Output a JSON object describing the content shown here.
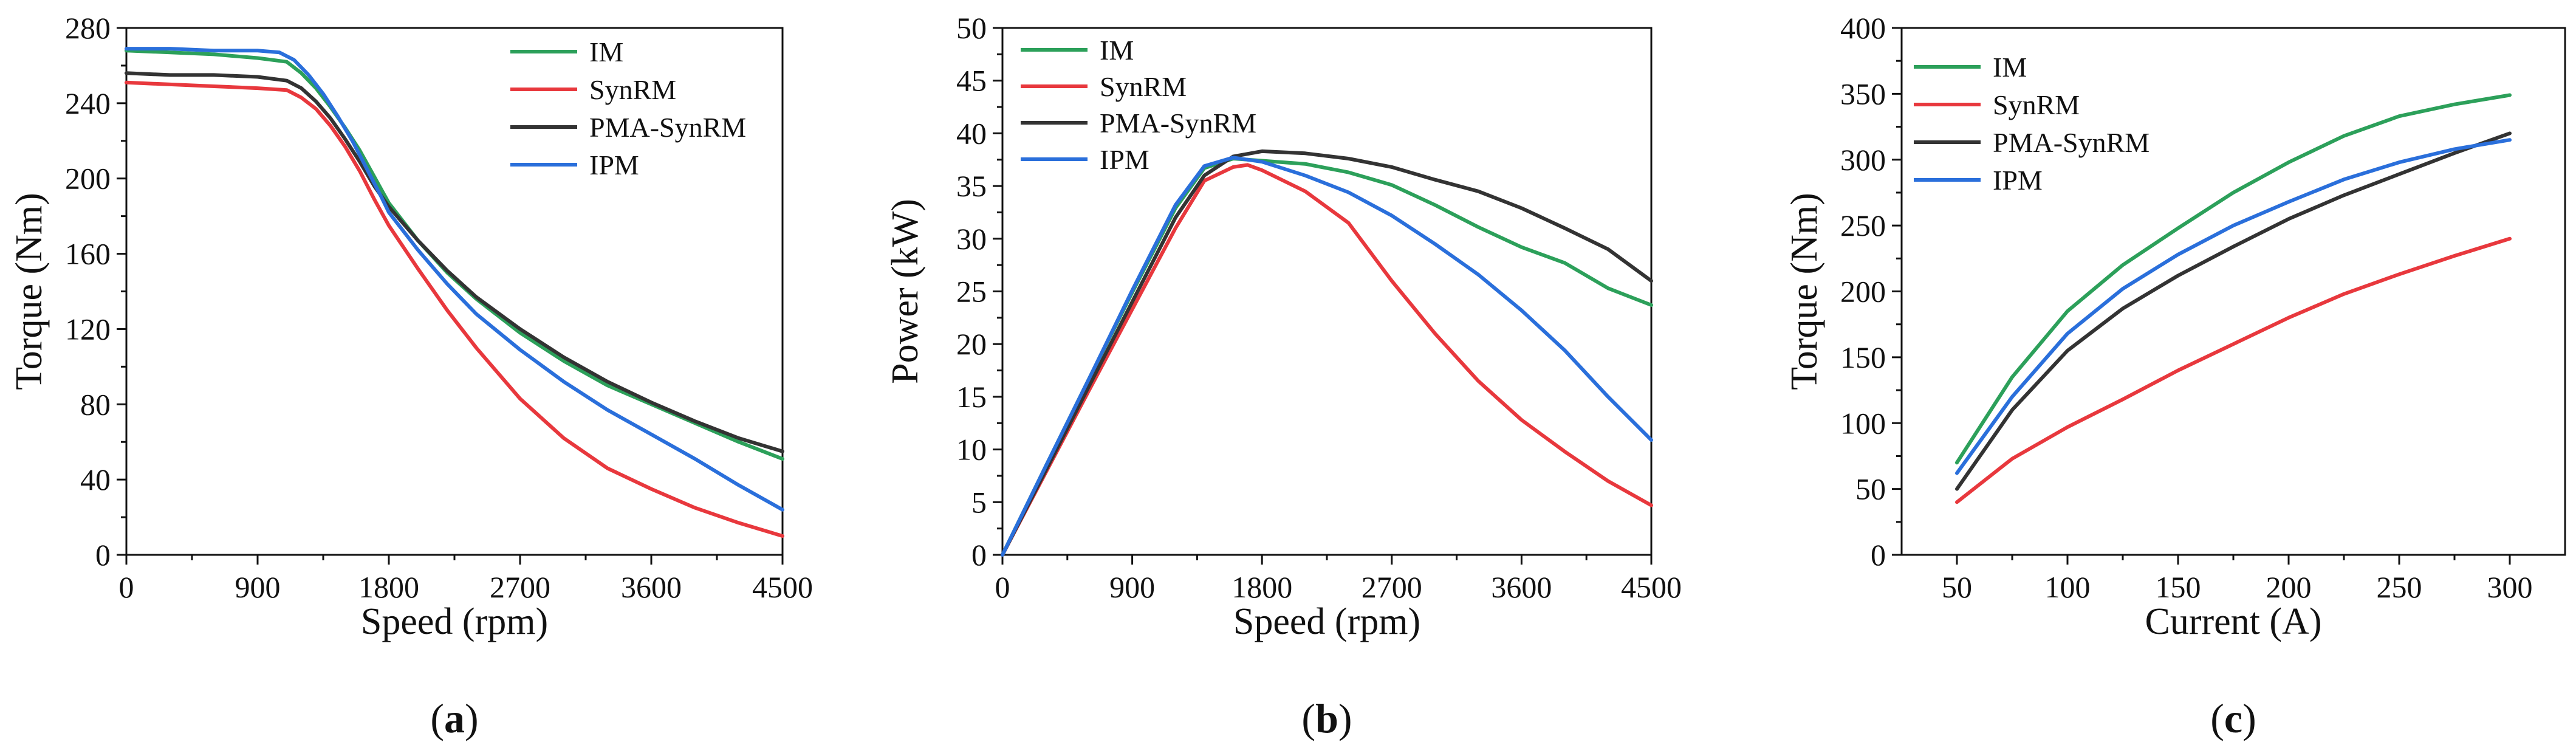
{
  "chart_data": [
    {
      "type": "line",
      "panel_label": "a",
      "xlabel": "Speed (rpm)",
      "ylabel": "Torque (Nm)",
      "xlim": [
        0,
        4500
      ],
      "ylim": [
        0,
        280
      ],
      "xticks": [
        0,
        900,
        1800,
        2700,
        3600,
        4500
      ],
      "yticks": [
        0,
        40,
        80,
        120,
        160,
        200,
        240,
        280
      ],
      "legend_position": "top-right",
      "series": [
        {
          "name": "IM",
          "color": "#2ca05a",
          "x": [
            0,
            300,
            600,
            900,
            1100,
            1200,
            1300,
            1400,
            1500,
            1600,
            1700,
            1800,
            2000,
            2200,
            2400,
            2700,
            3000,
            3300,
            3600,
            3900,
            4200,
            4500
          ],
          "y": [
            268,
            267,
            266,
            264,
            262,
            256,
            248,
            238,
            227,
            215,
            201,
            187,
            167,
            150,
            136,
            118,
            103,
            90,
            80,
            70,
            60,
            51
          ]
        },
        {
          "name": "SynRM",
          "color": "#e8383d",
          "x": [
            0,
            300,
            600,
            900,
            1100,
            1200,
            1300,
            1400,
            1500,
            1600,
            1700,
            1800,
            2000,
            2200,
            2400,
            2700,
            3000,
            3300,
            3600,
            3900,
            4200,
            4500
          ],
          "y": [
            251,
            250,
            249,
            248,
            247,
            243,
            237,
            228,
            217,
            204,
            189,
            175,
            152,
            130,
            110,
            83,
            62,
            46,
            35,
            25,
            17,
            10
          ]
        },
        {
          "name": "PMA-SynRM",
          "color": "#333333",
          "x": [
            0,
            300,
            600,
            900,
            1100,
            1200,
            1300,
            1400,
            1500,
            1600,
            1700,
            1800,
            2000,
            2200,
            2400,
            2700,
            3000,
            3300,
            3600,
            3900,
            4200,
            4500
          ],
          "y": [
            256,
            255,
            255,
            254,
            252,
            248,
            241,
            232,
            221,
            209,
            196,
            185,
            167,
            151,
            137,
            120,
            105,
            92,
            81,
            71,
            62,
            55
          ]
        },
        {
          "name": "IPM",
          "color": "#2a6fdb",
          "x": [
            0,
            300,
            600,
            900,
            1050,
            1150,
            1250,
            1350,
            1450,
            1550,
            1650,
            1750,
            1800,
            2000,
            2200,
            2400,
            2700,
            3000,
            3300,
            3600,
            3900,
            4200,
            4500
          ],
          "y": [
            269,
            269,
            268,
            268,
            267,
            263,
            255,
            245,
            233,
            220,
            205,
            190,
            182,
            162,
            144,
            128,
            109,
            92,
            77,
            64,
            51,
            37,
            24
          ]
        }
      ]
    },
    {
      "type": "line",
      "panel_label": "b",
      "xlabel": "Speed (rpm)",
      "ylabel": "Power (kW)",
      "xlim": [
        0,
        4500
      ],
      "ylim": [
        0,
        50
      ],
      "xticks": [
        0,
        900,
        1800,
        2700,
        3600,
        4500
      ],
      "yticks": [
        0,
        5,
        10,
        15,
        20,
        25,
        30,
        35,
        40,
        45,
        50
      ],
      "legend_position": "top-left",
      "series": [
        {
          "name": "IM",
          "color": "#2ca05a",
          "x": [
            0,
            300,
            600,
            900,
            1200,
            1400,
            1600,
            1800,
            2100,
            2400,
            2700,
            3000,
            3300,
            3600,
            3900,
            4200,
            4500
          ],
          "y": [
            0,
            8.4,
            16.7,
            24.9,
            32.9,
            36.7,
            37.6,
            37.4,
            37.1,
            36.3,
            35.1,
            33.2,
            31.1,
            29.2,
            27.7,
            25.3,
            23.7
          ]
        },
        {
          "name": "SynRM",
          "color": "#e8383d",
          "x": [
            0,
            300,
            600,
            900,
            1200,
            1400,
            1600,
            1700,
            1800,
            2100,
            2400,
            2700,
            3000,
            3300,
            3600,
            3900,
            4200,
            4500
          ],
          "y": [
            0,
            7.8,
            15.6,
            23.3,
            31.0,
            35.5,
            36.8,
            37.0,
            36.5,
            34.5,
            31.5,
            26.0,
            21.0,
            16.5,
            12.8,
            9.8,
            7.0,
            4.7
          ]
        },
        {
          "name": "PMA-SynRM",
          "color": "#333333",
          "x": [
            0,
            300,
            600,
            900,
            1200,
            1400,
            1600,
            1800,
            2100,
            2400,
            2700,
            3000,
            3300,
            3600,
            3900,
            4200,
            4500
          ],
          "y": [
            0,
            8.0,
            16.0,
            24.0,
            32.0,
            36.0,
            37.8,
            38.3,
            38.1,
            37.6,
            36.8,
            35.6,
            34.5,
            32.9,
            31.0,
            29.0,
            26.0
          ]
        },
        {
          "name": "IPM",
          "color": "#2a6fdb",
          "x": [
            0,
            300,
            600,
            900,
            1200,
            1400,
            1600,
            1800,
            2100,
            2400,
            2700,
            3000,
            3300,
            3600,
            3900,
            4200,
            4500
          ],
          "y": [
            0,
            8.4,
            16.7,
            25.1,
            33.2,
            36.9,
            37.7,
            37.3,
            36.0,
            34.4,
            32.2,
            29.5,
            26.6,
            23.2,
            19.4,
            15.0,
            10.9
          ]
        }
      ]
    },
    {
      "type": "line",
      "panel_label": "c",
      "xlabel": "Current (A)",
      "ylabel": "Torque (Nm)",
      "xlim": [
        25,
        325
      ],
      "ylim": [
        0,
        400
      ],
      "xticks": [
        50,
        100,
        150,
        200,
        250,
        300
      ],
      "yticks": [
        0,
        50,
        100,
        150,
        200,
        250,
        300,
        350,
        400
      ],
      "legend_position": "top-left",
      "series": [
        {
          "name": "IM",
          "color": "#2ca05a",
          "x": [
            50,
            75,
            100,
            125,
            150,
            175,
            200,
            225,
            250,
            275,
            300
          ],
          "y": [
            70,
            135,
            185,
            220,
            248,
            275,
            298,
            318,
            333,
            342,
            349
          ]
        },
        {
          "name": "SynRM",
          "color": "#e8383d",
          "x": [
            50,
            75,
            100,
            125,
            150,
            175,
            200,
            225,
            250,
            275,
            300
          ],
          "y": [
            40,
            73,
            97,
            118,
            140,
            160,
            180,
            198,
            213,
            227,
            240
          ]
        },
        {
          "name": "PMA-SynRM",
          "color": "#333333",
          "x": [
            50,
            75,
            100,
            125,
            150,
            175,
            200,
            225,
            250,
            275,
            300
          ],
          "y": [
            50,
            110,
            155,
            187,
            212,
            234,
            255,
            273,
            289,
            305,
            320
          ]
        },
        {
          "name": "IPM",
          "color": "#2a6fdb",
          "x": [
            50,
            75,
            100,
            125,
            150,
            175,
            200,
            225,
            250,
            275,
            300
          ],
          "y": [
            62,
            120,
            168,
            202,
            228,
            250,
            268,
            285,
            298,
            308,
            315
          ]
        }
      ]
    }
  ]
}
